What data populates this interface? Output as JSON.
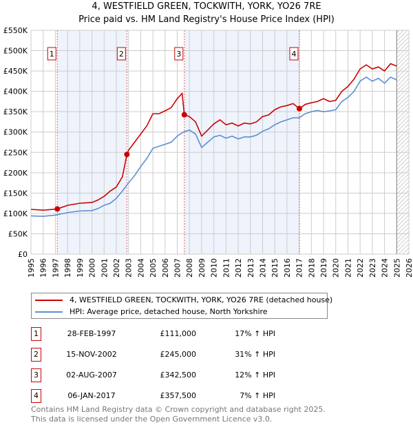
{
  "chart_data": {
    "type": "line",
    "title": "4, WESTFIELD GREEN, TOCKWITH, YORK, YO26 7RE",
    "subtitle": "Price paid vs. HM Land Registry's House Price Index (HPI)",
    "xlim": [
      1995,
      2026
    ],
    "ylim": [
      0,
      550000
    ],
    "x_ticks": [
      "1995",
      "1996",
      "1997",
      "1998",
      "1999",
      "2000",
      "2001",
      "2002",
      "2003",
      "2004",
      "2005",
      "2006",
      "2007",
      "2008",
      "2009",
      "2010",
      "2011",
      "2012",
      "2013",
      "2014",
      "2015",
      "2016",
      "2017",
      "2018",
      "2019",
      "2020",
      "2021",
      "2022",
      "2023",
      "2024",
      "2025",
      "2026"
    ],
    "y_ticks": [
      {
        "v": 0,
        "label": "£0"
      },
      {
        "v": 50000,
        "label": "£50K"
      },
      {
        "v": 100000,
        "label": "£100K"
      },
      {
        "v": 150000,
        "label": "£150K"
      },
      {
        "v": 200000,
        "label": "£200K"
      },
      {
        "v": 250000,
        "label": "£250K"
      },
      {
        "v": 300000,
        "label": "£300K"
      },
      {
        "v": 350000,
        "label": "£350K"
      },
      {
        "v": 400000,
        "label": "£400K"
      },
      {
        "v": 450000,
        "label": "£450K"
      },
      {
        "v": 500000,
        "label": "£500K"
      },
      {
        "v": 550000,
        "label": "£550K"
      }
    ],
    "grid": true,
    "series": [
      {
        "name": "4, WESTFIELD GREEN, TOCKWITH, YORK, YO26 7RE (detached house)",
        "color": "#cc0000",
        "points": [
          [
            1995,
            110
          ],
          [
            1996,
            108
          ],
          [
            1997.16,
            111
          ],
          [
            1998,
            120
          ],
          [
            1999,
            125
          ],
          [
            2000,
            127
          ],
          [
            2000.5,
            133
          ],
          [
            2001,
            142
          ],
          [
            2001.5,
            155
          ],
          [
            2002,
            165
          ],
          [
            2002.5,
            190
          ],
          [
            2002.87,
            245
          ],
          [
            2003,
            255
          ],
          [
            2003.5,
            275
          ],
          [
            2004,
            295
          ],
          [
            2004.5,
            315
          ],
          [
            2005,
            345
          ],
          [
            2005.5,
            345
          ],
          [
            2006,
            352
          ],
          [
            2006.5,
            360
          ],
          [
            2007,
            382
          ],
          [
            2007.4,
            395
          ],
          [
            2007.58,
            342.5
          ],
          [
            2008,
            338
          ],
          [
            2008.5,
            325
          ],
          [
            2009,
            290
          ],
          [
            2009.5,
            305
          ],
          [
            2010,
            320
          ],
          [
            2010.5,
            330
          ],
          [
            2011,
            318
          ],
          [
            2011.5,
            322
          ],
          [
            2012,
            315
          ],
          [
            2012.5,
            322
          ],
          [
            2013,
            320
          ],
          [
            2013.5,
            325
          ],
          [
            2014,
            338
          ],
          [
            2014.5,
            342
          ],
          [
            2015,
            355
          ],
          [
            2015.5,
            362
          ],
          [
            2016,
            365
          ],
          [
            2016.5,
            370
          ],
          [
            2017.02,
            357.5
          ],
          [
            2017.5,
            368
          ],
          [
            2018,
            372
          ],
          [
            2018.5,
            375
          ],
          [
            2019,
            382
          ],
          [
            2019.5,
            375
          ],
          [
            2020,
            378
          ],
          [
            2020.5,
            400
          ],
          [
            2021,
            412
          ],
          [
            2021.5,
            430
          ],
          [
            2022,
            455
          ],
          [
            2022.5,
            465
          ],
          [
            2023,
            455
          ],
          [
            2023.5,
            460
          ],
          [
            2024,
            450
          ],
          [
            2024.5,
            468
          ],
          [
            2025,
            462
          ]
        ]
      },
      {
        "name": "HPI: Average price, detached house, North Yorkshire",
        "color": "#5b8fd0",
        "points": [
          [
            1995,
            94
          ],
          [
            1996,
            93
          ],
          [
            1997,
            96
          ],
          [
            1998,
            102
          ],
          [
            1999,
            106
          ],
          [
            2000,
            107
          ],
          [
            2000.5,
            112
          ],
          [
            2001,
            120
          ],
          [
            2001.5,
            125
          ],
          [
            2002,
            137
          ],
          [
            2002.5,
            155
          ],
          [
            2003,
            175
          ],
          [
            2003.5,
            193
          ],
          [
            2004,
            215
          ],
          [
            2004.5,
            235
          ],
          [
            2005,
            260
          ],
          [
            2005.5,
            265
          ],
          [
            2006,
            270
          ],
          [
            2006.5,
            275
          ],
          [
            2007,
            290
          ],
          [
            2007.5,
            300
          ],
          [
            2008,
            305
          ],
          [
            2008.5,
            295
          ],
          [
            2009,
            262
          ],
          [
            2009.5,
            275
          ],
          [
            2010,
            288
          ],
          [
            2010.5,
            292
          ],
          [
            2011,
            285
          ],
          [
            2011.5,
            290
          ],
          [
            2012,
            283
          ],
          [
            2012.5,
            288
          ],
          [
            2013,
            288
          ],
          [
            2013.5,
            292
          ],
          [
            2014,
            302
          ],
          [
            2014.5,
            308
          ],
          [
            2015,
            318
          ],
          [
            2015.5,
            325
          ],
          [
            2016,
            330
          ],
          [
            2016.5,
            335
          ],
          [
            2017,
            335
          ],
          [
            2017.5,
            345
          ],
          [
            2018,
            350
          ],
          [
            2018.5,
            353
          ],
          [
            2019,
            350
          ],
          [
            2019.5,
            352
          ],
          [
            2020,
            355
          ],
          [
            2020.5,
            375
          ],
          [
            2021,
            385
          ],
          [
            2021.5,
            400
          ],
          [
            2022,
            425
          ],
          [
            2022.5,
            435
          ],
          [
            2023,
            425
          ],
          [
            2023.5,
            432
          ],
          [
            2024,
            420
          ],
          [
            2024.5,
            435
          ],
          [
            2025,
            428
          ]
        ]
      }
    ],
    "series_units": "thousands GBP",
    "sales": [
      {
        "n": "1",
        "x": 1997.16,
        "y": 111,
        "date": "28-FEB-1997",
        "price": "£111,000",
        "hpi": "17% ↑ HPI"
      },
      {
        "n": "2",
        "x": 2002.87,
        "y": 245,
        "date": "15-NOV-2002",
        "price": "£245,000",
        "hpi": "31% ↑ HPI"
      },
      {
        "n": "3",
        "x": 2007.58,
        "y": 342.5,
        "date": "02-AUG-2007",
        "price": "£342,500",
        "hpi": "12% ↑ HPI"
      },
      {
        "n": "4",
        "x": 2017.02,
        "y": 357.5,
        "date": "06-JAN-2017",
        "price": "£357,500",
        "hpi": "7% ↑ HPI"
      }
    ],
    "shaded_ranges": [
      [
        1997.16,
        2002.87
      ],
      [
        2007.58,
        2017.02
      ]
    ],
    "forecast_from": 2025.0
  },
  "footer": {
    "line1": "Contains HM Land Registry data © Crown copyright and database right 2025.",
    "line2": "This data is licensed under the Open Government Licence v3.0."
  }
}
